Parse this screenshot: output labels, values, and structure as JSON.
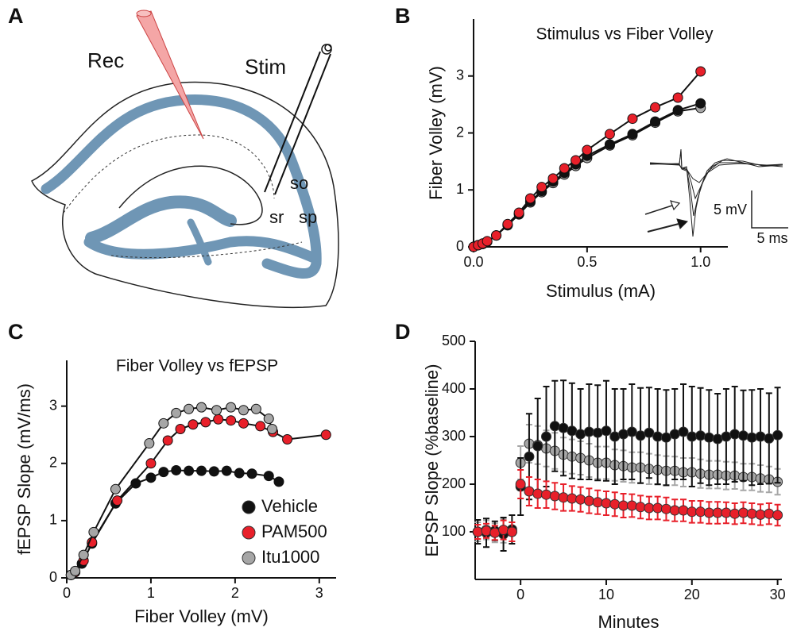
{
  "panel_a": {
    "label": "A",
    "rec": "Rec",
    "stim": "Stim",
    "layers": [
      "so",
      "sr",
      "sp"
    ]
  },
  "chart_data": [
    {
      "type": "line",
      "panel_label": "B",
      "title": "Stimulus vs Fiber Volley",
      "xlabel": "Stimulus (mA)",
      "ylabel": "Fiber Volley (mV)",
      "x": [
        0,
        0.02,
        0.04,
        0.06,
        0.1,
        0.15,
        0.2,
        0.25,
        0.3,
        0.35,
        0.4,
        0.45,
        0.5,
        0.6,
        0.7,
        0.8,
        0.9,
        1.0
      ],
      "xlim": [
        0,
        1.12
      ],
      "xticks": [
        {
          "value": 0,
          "label": "0.0"
        },
        {
          "value": 0.5,
          "label": "0.5"
        },
        {
          "value": 1,
          "label": "1.0"
        }
      ],
      "ylim": [
        0,
        4
      ],
      "yticks": [
        0,
        1,
        2,
        3
      ],
      "inset_scale": {
        "amplitude": "5 mV",
        "duration": "5 ms"
      },
      "series": [
        {
          "color": "#a6a6a6",
          "values": [
            0,
            0.03,
            0.05,
            0.09,
            0.2,
            0.38,
            0.57,
            0.78,
            0.96,
            1.12,
            1.27,
            1.42,
            1.56,
            1.78,
            1.96,
            2.18,
            2.38,
            2.44
          ]
        },
        {
          "color": "#111111",
          "values": [
            0,
            0.03,
            0.05,
            0.09,
            0.2,
            0.38,
            0.58,
            0.8,
            0.98,
            1.15,
            1.3,
            1.45,
            1.6,
            1.8,
            1.98,
            2.2,
            2.4,
            2.52
          ]
        },
        {
          "color": "#e8202a",
          "values": [
            0,
            0.03,
            0.06,
            0.1,
            0.2,
            0.4,
            0.6,
            0.85,
            1.05,
            1.2,
            1.38,
            1.52,
            1.7,
            1.98,
            2.25,
            2.45,
            2.62,
            3.08
          ]
        }
      ]
    },
    {
      "type": "line",
      "panel_label": "C",
      "title": "Fiber Volley vs fEPSP",
      "xlabel": "Fiber Volley (mV)",
      "ylabel": "fEPSP Slope (mV/ms)",
      "xlim": [
        0,
        3.2
      ],
      "xticks": [
        0,
        1,
        2,
        3
      ],
      "ylim": [
        0,
        3.8
      ],
      "yticks": [
        0,
        1,
        2,
        3
      ],
      "legend": "lower right",
      "series": [
        {
          "name": "Vehicle",
          "color": "#111111",
          "x": [
            0.05,
            0.1,
            0.18,
            0.3,
            0.58,
            0.82,
            1.0,
            1.15,
            1.3,
            1.45,
            1.6,
            1.75,
            1.9,
            2.05,
            2.2,
            2.4,
            2.52
          ],
          "values": [
            0.05,
            0.1,
            0.25,
            0.6,
            1.3,
            1.65,
            1.75,
            1.85,
            1.88,
            1.87,
            1.87,
            1.86,
            1.87,
            1.83,
            1.82,
            1.78,
            1.68
          ]
        },
        {
          "name": "PAM500",
          "color": "#e8202a",
          "x": [
            0.05,
            0.1,
            0.2,
            0.3,
            0.6,
            1.0,
            1.2,
            1.35,
            1.5,
            1.65,
            1.8,
            1.95,
            2.1,
            2.3,
            2.45,
            2.62,
            3.08
          ],
          "values": [
            0.05,
            0.1,
            0.3,
            0.62,
            1.35,
            2.0,
            2.4,
            2.6,
            2.68,
            2.72,
            2.77,
            2.75,
            2.7,
            2.65,
            2.55,
            2.42,
            2.5
          ]
        },
        {
          "name": "Itu1000",
          "color": "#a6a6a6",
          "x": [
            0.05,
            0.1,
            0.2,
            0.32,
            0.58,
            0.98,
            1.15,
            1.3,
            1.45,
            1.6,
            1.78,
            1.95,
            2.1,
            2.25,
            2.4,
            2.44
          ],
          "values": [
            0.05,
            0.12,
            0.4,
            0.8,
            1.55,
            2.35,
            2.7,
            2.88,
            2.95,
            2.98,
            2.93,
            2.98,
            2.93,
            2.95,
            2.78,
            2.6
          ]
        }
      ]
    },
    {
      "type": "scatter",
      "panel_label": "D",
      "xlabel": "Minutes",
      "ylabel": "EPSP Slope (%baseline)",
      "x": [
        -5,
        -4,
        -3,
        -2,
        -1,
        0,
        1,
        2,
        3,
        4,
        5,
        6,
        7,
        8,
        9,
        10,
        11,
        12,
        13,
        14,
        15,
        16,
        17,
        18,
        19,
        20,
        21,
        22,
        23,
        24,
        25,
        26,
        27,
        28,
        29,
        30
      ],
      "xlim": [
        -5.3,
        30.5
      ],
      "xticks": [
        0,
        10,
        20,
        30
      ],
      "ylim": [
        0,
        500
      ],
      "yticks": [
        100,
        200,
        300,
        400,
        500
      ],
      "series": [
        {
          "color": "#a6a6a6",
          "values": [
            100,
            104,
            98,
            102,
            100,
            245,
            285,
            282,
            275,
            270,
            262,
            258,
            255,
            250,
            245,
            245,
            240,
            238,
            235,
            235,
            232,
            230,
            228,
            228,
            225,
            225,
            222,
            220,
            220,
            218,
            218,
            215,
            215,
            212,
            210,
            205
          ],
          "errors": [
            20,
            20,
            20,
            25,
            20,
            35,
            40,
            40,
            38,
            38,
            36,
            36,
            35,
            35,
            34,
            34,
            33,
            33,
            32,
            32,
            32,
            31,
            31,
            30,
            30,
            30,
            30,
            29,
            29,
            29,
            28,
            28,
            28,
            28,
            27,
            27
          ]
        },
        {
          "color": "#111111",
          "values": [
            100,
            98,
            102,
            95,
            105,
            195,
            258,
            280,
            300,
            322,
            318,
            312,
            305,
            310,
            308,
            312,
            300,
            305,
            310,
            302,
            308,
            300,
            298,
            305,
            310,
            300,
            302,
            298,
            295,
            300,
            305,
            302,
            298,
            300,
            296,
            303
          ],
          "errors": [
            25,
            30,
            20,
            35,
            30,
            60,
            90,
            100,
            105,
            95,
            100,
            100,
            95,
            100,
            100,
            105,
            100,
            95,
            100,
            100,
            95,
            100,
            100,
            95,
            100,
            105,
            100,
            100,
            95,
            100,
            100,
            95,
            100,
            100,
            95,
            100
          ]
        },
        {
          "color": "#e8202a",
          "values": [
            100,
            102,
            98,
            104,
            100,
            200,
            185,
            180,
            178,
            175,
            172,
            170,
            168,
            165,
            162,
            160,
            158,
            155,
            155,
            152,
            150,
            150,
            148,
            145,
            145,
            142,
            142,
            140,
            140,
            140,
            138,
            140,
            138,
            136,
            138,
            135
          ],
          "errors": [
            15,
            15,
            15,
            20,
            20,
            30,
            30,
            30,
            28,
            28,
            28,
            26,
            26,
            26,
            25,
            25,
            25,
            25,
            24,
            24,
            24,
            24,
            24,
            23,
            23,
            23,
            23,
            23,
            23,
            22,
            22,
            22,
            22,
            22,
            22,
            22
          ]
        }
      ]
    }
  ]
}
